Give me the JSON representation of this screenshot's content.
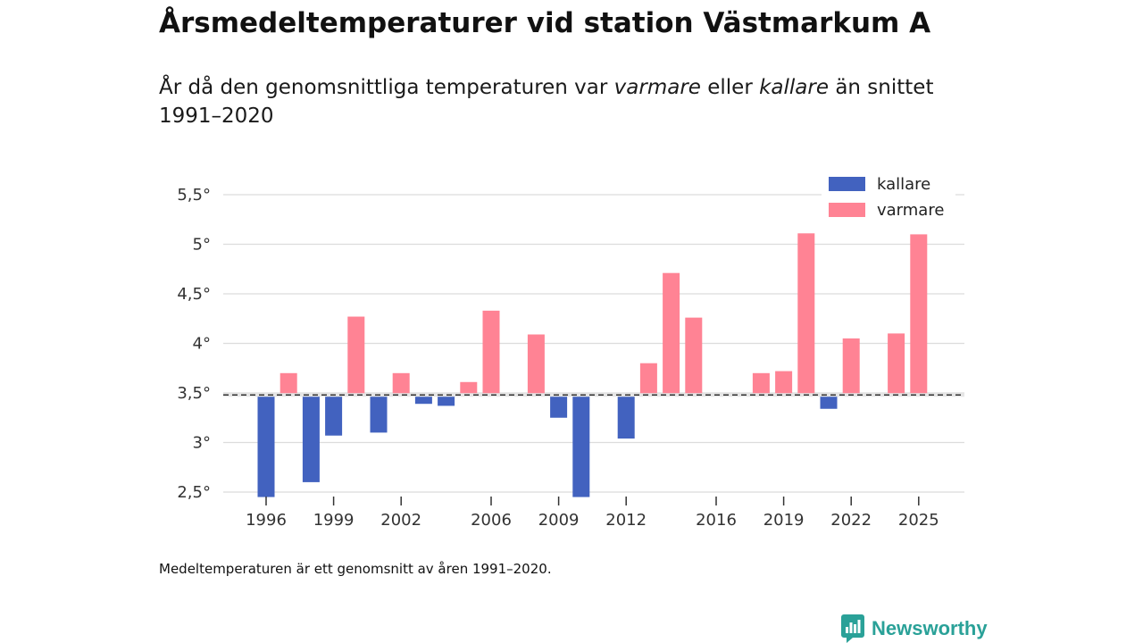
{
  "header": {
    "title": "Årsmedeltemperaturer vid station Västmarkum A",
    "subtitle_parts": [
      {
        "text": "År då den genomsnittliga temperaturen var ",
        "italic": false
      },
      {
        "text": "varmare",
        "italic": true
      },
      {
        "text": " eller ",
        "italic": false
      },
      {
        "text": "kallare",
        "italic": true
      },
      {
        "text": " än snittet 1991–2020",
        "italic": false
      }
    ]
  },
  "colors": {
    "colder": "#4262bf",
    "warmer": "#ff8394",
    "grid": "#dcdcdc",
    "baseline": "#333333"
  },
  "chart_data": {
    "type": "bar",
    "title": "Årsmedeltemperaturer vid station Västmarkum A",
    "xlabel": "",
    "ylabel": "",
    "baseline": 3.48,
    "ylim": [
      2.45,
      5.55
    ],
    "yticks": [
      2.5,
      3,
      3.5,
      4,
      4.5,
      5,
      5.5
    ],
    "ytick_labels": [
      "2,5°",
      "3°",
      "3,5°",
      "4°",
      "4,5°",
      "5°",
      "5,5°"
    ],
    "xticks": [
      1996,
      1999,
      2002,
      2006,
      2009,
      2012,
      2016,
      2019,
      2022,
      2025
    ],
    "xtick_labels": [
      "1996",
      "1999",
      "2002",
      "2006",
      "2009",
      "2012",
      "2016",
      "2019",
      "2022",
      "2025"
    ],
    "legend": [
      {
        "key": "kallare",
        "label": "kallare",
        "color": "#4262bf"
      },
      {
        "key": "varmare",
        "label": "varmare",
        "color": "#ff8394"
      }
    ],
    "legend_position": "top-right",
    "points": [
      {
        "year": 1996,
        "value": 2.43,
        "group": "kallare"
      },
      {
        "year": 1997,
        "value": 3.7,
        "group": "varmare"
      },
      {
        "year": 1998,
        "value": 2.6,
        "group": "kallare"
      },
      {
        "year": 1999,
        "value": 3.07,
        "group": "kallare"
      },
      {
        "year": 2000,
        "value": 4.27,
        "group": "varmare"
      },
      {
        "year": 2001,
        "value": 3.1,
        "group": "kallare"
      },
      {
        "year": 2002,
        "value": 3.7,
        "group": "varmare"
      },
      {
        "year": 2003,
        "value": 3.39,
        "group": "kallare"
      },
      {
        "year": 2004,
        "value": 3.37,
        "group": "kallare"
      },
      {
        "year": 2005,
        "value": 3.61,
        "group": "varmare"
      },
      {
        "year": 2006,
        "value": 4.33,
        "group": "varmare"
      },
      {
        "year": 2008,
        "value": 4.09,
        "group": "varmare"
      },
      {
        "year": 2009,
        "value": 3.25,
        "group": "kallare"
      },
      {
        "year": 2010,
        "value": 2.43,
        "group": "kallare"
      },
      {
        "year": 2012,
        "value": 3.04,
        "group": "kallare"
      },
      {
        "year": 2013,
        "value": 3.8,
        "group": "varmare"
      },
      {
        "year": 2014,
        "value": 4.71,
        "group": "varmare"
      },
      {
        "year": 2015,
        "value": 4.26,
        "group": "varmare"
      },
      {
        "year": 2018,
        "value": 3.7,
        "group": "varmare"
      },
      {
        "year": 2019,
        "value": 3.72,
        "group": "varmare"
      },
      {
        "year": 2020,
        "value": 5.11,
        "group": "varmare"
      },
      {
        "year": 2021,
        "value": 3.34,
        "group": "kallare"
      },
      {
        "year": 2022,
        "value": 4.05,
        "group": "varmare"
      },
      {
        "year": 2024,
        "value": 4.1,
        "group": "varmare"
      },
      {
        "year": 2025,
        "value": 5.1,
        "group": "varmare"
      }
    ]
  },
  "footnote": "Medeltemperaturen är ett genomsnitt av åren 1991–2020.",
  "brand": {
    "name": "Newsworthy",
    "icon": "newsworthy-logo-icon"
  }
}
